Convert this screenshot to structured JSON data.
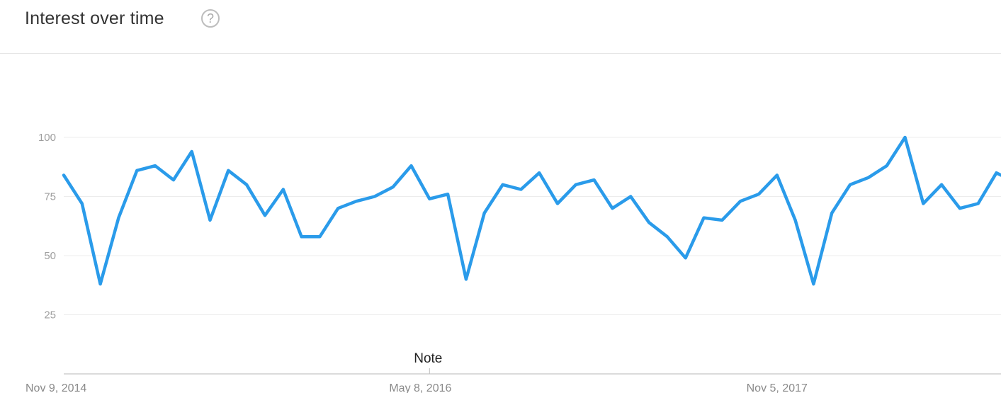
{
  "header": {
    "title": "Interest over time",
    "help_icon": "question-circle-icon",
    "help_glyph": "?"
  },
  "chart_data": {
    "type": "line",
    "title": "Interest over time",
    "xlabel": "",
    "ylabel": "",
    "ylim": [
      0,
      100
    ],
    "y_ticks": [
      25,
      50,
      75,
      100
    ],
    "x_range": [
      "2014-11-09",
      "2018-10-14"
    ],
    "x_tick_labels": [
      {
        "date": "2014-11-09",
        "label": "Nov 9, 2014"
      },
      {
        "date": "2016-05-08",
        "label": "May 8, 2016"
      },
      {
        "date": "2017-11-05",
        "label": "Nov 5, 2017"
      }
    ],
    "grid": true,
    "legend": "none",
    "line_color": "#2a9bea",
    "annotations": [
      {
        "date": "2016-05-22",
        "label": "Note"
      }
    ],
    "series": [
      {
        "x": [
          "2014-11-09",
          "2014-12-07",
          "2015-01-04",
          "2015-02-01",
          "2015-03-01",
          "2015-03-29",
          "2015-04-26",
          "2015-05-24",
          "2015-06-21",
          "2015-07-19",
          "2015-08-16",
          "2015-09-13",
          "2015-10-11",
          "2015-11-08",
          "2015-12-06",
          "2016-01-03",
          "2016-01-31",
          "2016-02-28",
          "2016-03-27",
          "2016-04-24",
          "2016-05-22",
          "2016-06-19",
          "2016-07-17",
          "2016-08-14",
          "2016-09-11",
          "2016-10-09",
          "2016-11-06",
          "2016-12-04",
          "2017-01-01",
          "2017-01-29",
          "2017-02-26",
          "2017-03-26",
          "2017-04-23",
          "2017-05-21",
          "2017-06-18",
          "2017-07-16",
          "2017-08-13",
          "2017-09-10",
          "2017-10-08",
          "2017-11-05",
          "2017-12-03",
          "2017-12-31",
          "2018-01-28",
          "2018-02-25",
          "2018-03-25",
          "2018-04-22",
          "2018-05-20",
          "2018-06-17",
          "2018-07-15",
          "2018-08-12",
          "2018-09-09",
          "2018-10-07",
          "2018-10-14"
        ],
        "values": [
          84,
          72,
          38,
          66,
          86,
          88,
          82,
          94,
          65,
          86,
          80,
          67,
          78,
          58,
          58,
          70,
          73,
          75,
          79,
          88,
          74,
          76,
          40,
          68,
          80,
          78,
          85,
          72,
          80,
          82,
          70,
          75,
          64,
          58,
          49,
          66,
          65,
          73,
          76,
          84,
          65,
          38,
          68,
          80,
          83,
          88,
          100,
          72,
          80,
          70,
          72,
          85,
          84
        ]
      }
    ]
  }
}
